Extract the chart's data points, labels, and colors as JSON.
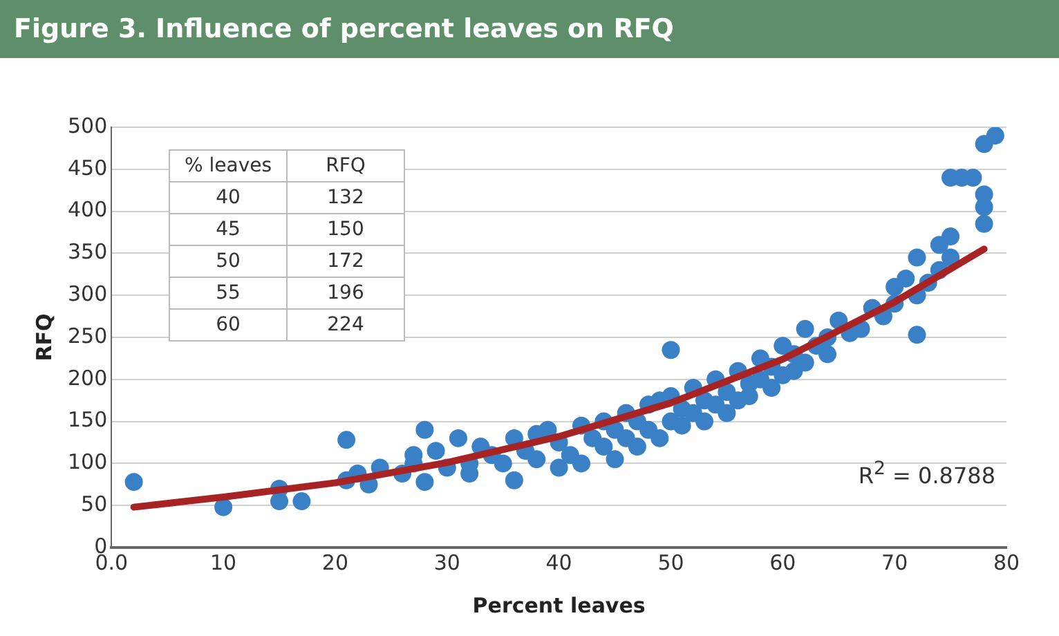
{
  "chart_data": {
    "type": "scatter",
    "title": "Figure 3. Influence of percent leaves on RFQ",
    "xlabel": "Percent leaves",
    "ylabel": "RFQ",
    "xlim": [
      0,
      80
    ],
    "xticks": [
      {
        "value": 0,
        "label": "0.0"
      },
      10,
      20,
      30,
      40,
      50,
      60,
      70,
      80
    ],
    "ylim": [
      0,
      500
    ],
    "yticks": [
      0,
      50,
      100,
      150,
      200,
      250,
      300,
      350,
      400,
      450,
      500
    ],
    "grid": "y",
    "legend": false,
    "marker": "circle",
    "annotations": [
      "% leaves",
      "RFQ",
      "40",
      "132",
      "45",
      "150",
      "50",
      "172",
      "55",
      "196",
      "60",
      "224",
      "R$^{2}$ = 0.8788"
    ],
    "series": [
      {
        "color": "#3a80c6",
        "x": [
          2,
          10,
          15,
          15,
          17,
          21,
          21,
          22,
          23,
          24,
          26,
          27,
          27,
          28,
          28,
          29,
          30,
          31,
          32,
          32,
          33,
          34,
          35,
          36,
          36,
          37,
          38,
          38,
          39,
          40,
          40,
          41,
          42,
          42,
          43,
          44,
          44,
          45,
          45,
          46,
          46,
          47,
          47,
          48,
          48,
          49,
          49,
          50,
          50,
          50,
          51,
          51,
          52,
          52,
          53,
          53,
          54,
          54,
          55,
          55,
          56,
          56,
          57,
          57,
          58,
          58,
          59,
          59,
          60,
          60,
          61,
          61,
          62,
          62,
          63,
          64,
          64,
          65,
          66,
          67,
          68,
          69,
          70,
          70,
          71,
          72,
          72,
          72,
          73,
          74,
          74,
          75,
          75,
          75,
          76,
          77,
          78,
          78,
          78,
          78,
          79
        ],
        "values": [
          78,
          48,
          55,
          70,
          55,
          80,
          128,
          88,
          75,
          95,
          88,
          100,
          110,
          140,
          78,
          115,
          95,
          130,
          100,
          88,
          120,
          110,
          100,
          80,
          130,
          115,
          105,
          135,
          140,
          95,
          125,
          110,
          145,
          100,
          130,
          120,
          150,
          140,
          105,
          130,
          160,
          150,
          120,
          170,
          140,
          175,
          130,
          235,
          150,
          180,
          145,
          165,
          190,
          160,
          175,
          150,
          200,
          170,
          185,
          160,
          210,
          175,
          195,
          180,
          225,
          200,
          215,
          190,
          205,
          240,
          230,
          210,
          260,
          220,
          240,
          250,
          230,
          270,
          255,
          260,
          285,
          275,
          310,
          290,
          320,
          345,
          300,
          253,
          315,
          330,
          360,
          345,
          440,
          370,
          440,
          440,
          405,
          385,
          420,
          480,
          490
        ]
      },
      {
        "type": "line",
        "color": "#a82424",
        "marker": "none",
        "x": [
          2,
          10,
          20,
          30,
          40,
          50,
          60,
          70,
          78
        ],
        "values": [
          48,
          60,
          77,
          101,
          132,
          172,
          224,
          292,
          355
        ]
      }
    ]
  }
}
